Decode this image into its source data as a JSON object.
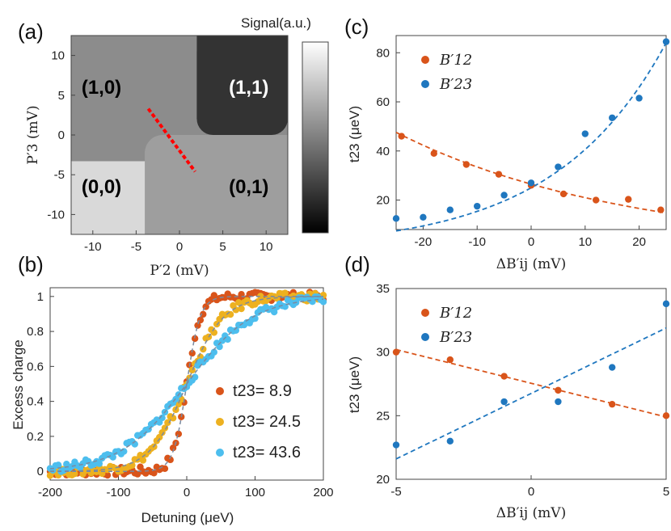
{
  "colors": {
    "orange": "#d9541a",
    "blue": "#1f77bf",
    "yellow": "#edb120",
    "cyan": "#4dbeee",
    "red_dash": "#ff0000"
  },
  "panel_labels": [
    "(a)",
    "(b)",
    "(c)",
    "(d)"
  ],
  "chart_data": [
    {
      "panel": "(a)",
      "type": "heatmap",
      "xlabel": "P′2 (mV)",
      "ylabel": "P′3 (mV)",
      "colorbar_label": "Signal(a.u.)",
      "xlim": [
        -12.5,
        12.5
      ],
      "ylim": [
        -12.5,
        12.5
      ],
      "xticks": [
        -10,
        -5,
        0,
        5,
        10
      ],
      "yticks": [
        -10,
        -5,
        0,
        5,
        10
      ],
      "regions": [
        {
          "label": "(1,0)",
          "x": -9,
          "y": 6,
          "value": 0.55
        },
        {
          "label": "(1,1)",
          "x": 8,
          "y": 6,
          "value": 0.2
        },
        {
          "label": "(0,0)",
          "x": -9,
          "y": -6.5,
          "value": 0.85
        },
        {
          "label": "(0,1)",
          "x": 8,
          "y": -6.5,
          "value": 0.62
        }
      ],
      "detuning_line": {
        "x": [
          -3.6,
          1.8
        ],
        "y": [
          3.3,
          -4.6
        ]
      }
    },
    {
      "panel": "(b)",
      "type": "scatter",
      "xlabel": "Detuning (μeV)",
      "ylabel": "Excess charge",
      "xlim": [
        -200,
        200
      ],
      "ylim": [
        -0.05,
        1.05
      ],
      "xticks": [
        -200,
        -100,
        0,
        100,
        200
      ],
      "yticks": [
        0,
        0.2,
        0.4,
        0.6,
        0.8,
        1
      ],
      "series": [
        {
          "name": "t23= 8.9",
          "t": 8.9,
          "color": "orange"
        },
        {
          "name": "t23= 24.5",
          "t": 24.5,
          "color": "yellow"
        },
        {
          "name": "t23= 43.6",
          "t": 43.6,
          "color": "cyan"
        }
      ]
    },
    {
      "panel": "(c)",
      "type": "scatter",
      "xlabel": "ΔB′ij (mV)",
      "ylabel": "t23 (μeV)",
      "xlim": [
        -25,
        25
      ],
      "ylim": [
        8,
        87
      ],
      "xticks": [
        -20,
        -10,
        0,
        10,
        20
      ],
      "yticks": [
        20,
        40,
        60,
        80
      ],
      "series": [
        {
          "name": "B′12",
          "color": "orange",
          "x": [
            -24,
            -18,
            -12,
            -6,
            0,
            6,
            12,
            18,
            24
          ],
          "y": [
            46,
            39,
            34.5,
            30.5,
            26,
            22.5,
            20,
            20.3,
            16
          ]
        },
        {
          "name": "B′23",
          "color": "blue",
          "x": [
            -25,
            -20,
            -15,
            -10,
            -5,
            0,
            5,
            10,
            15,
            20,
            25
          ],
          "y": [
            12.5,
            13,
            16,
            17.5,
            22,
            27,
            33.5,
            47,
            53.5,
            61.5,
            84.5
          ]
        }
      ],
      "fits": [
        {
          "series": "B′12",
          "kind": "exp",
          "a": 26.5,
          "b": -0.0234
        },
        {
          "series": "B′23",
          "kind": "exp",
          "a": 25.0,
          "b": 0.0485
        }
      ]
    },
    {
      "panel": "(d)",
      "type": "scatter",
      "xlabel": "ΔB′ij (mV)",
      "ylabel": "t23 (μeV)",
      "xlim": [
        -5,
        5
      ],
      "ylim": [
        20,
        35
      ],
      "xticks": [
        -5,
        0,
        5
      ],
      "yticks": [
        20,
        25,
        30,
        35
      ],
      "series": [
        {
          "name": "B′12",
          "color": "orange",
          "x": [
            -5,
            -3,
            -1,
            1,
            3,
            5
          ],
          "y": [
            30,
            29.4,
            28.1,
            27,
            25.9,
            25
          ]
        },
        {
          "name": "B′23",
          "color": "blue",
          "x": [
            -5,
            -3,
            -1,
            1,
            3,
            5
          ],
          "y": [
            22.7,
            23,
            26.1,
            26.1,
            28.8,
            33.8
          ]
        }
      ],
      "fits": [
        {
          "series": "B′12",
          "kind": "line",
          "x": [
            -5,
            5
          ],
          "y": [
            30.2,
            24.9
          ]
        },
        {
          "series": "B′23",
          "kind": "line",
          "x": [
            -5,
            5
          ],
          "y": [
            21.6,
            31.9
          ]
        }
      ]
    }
  ]
}
